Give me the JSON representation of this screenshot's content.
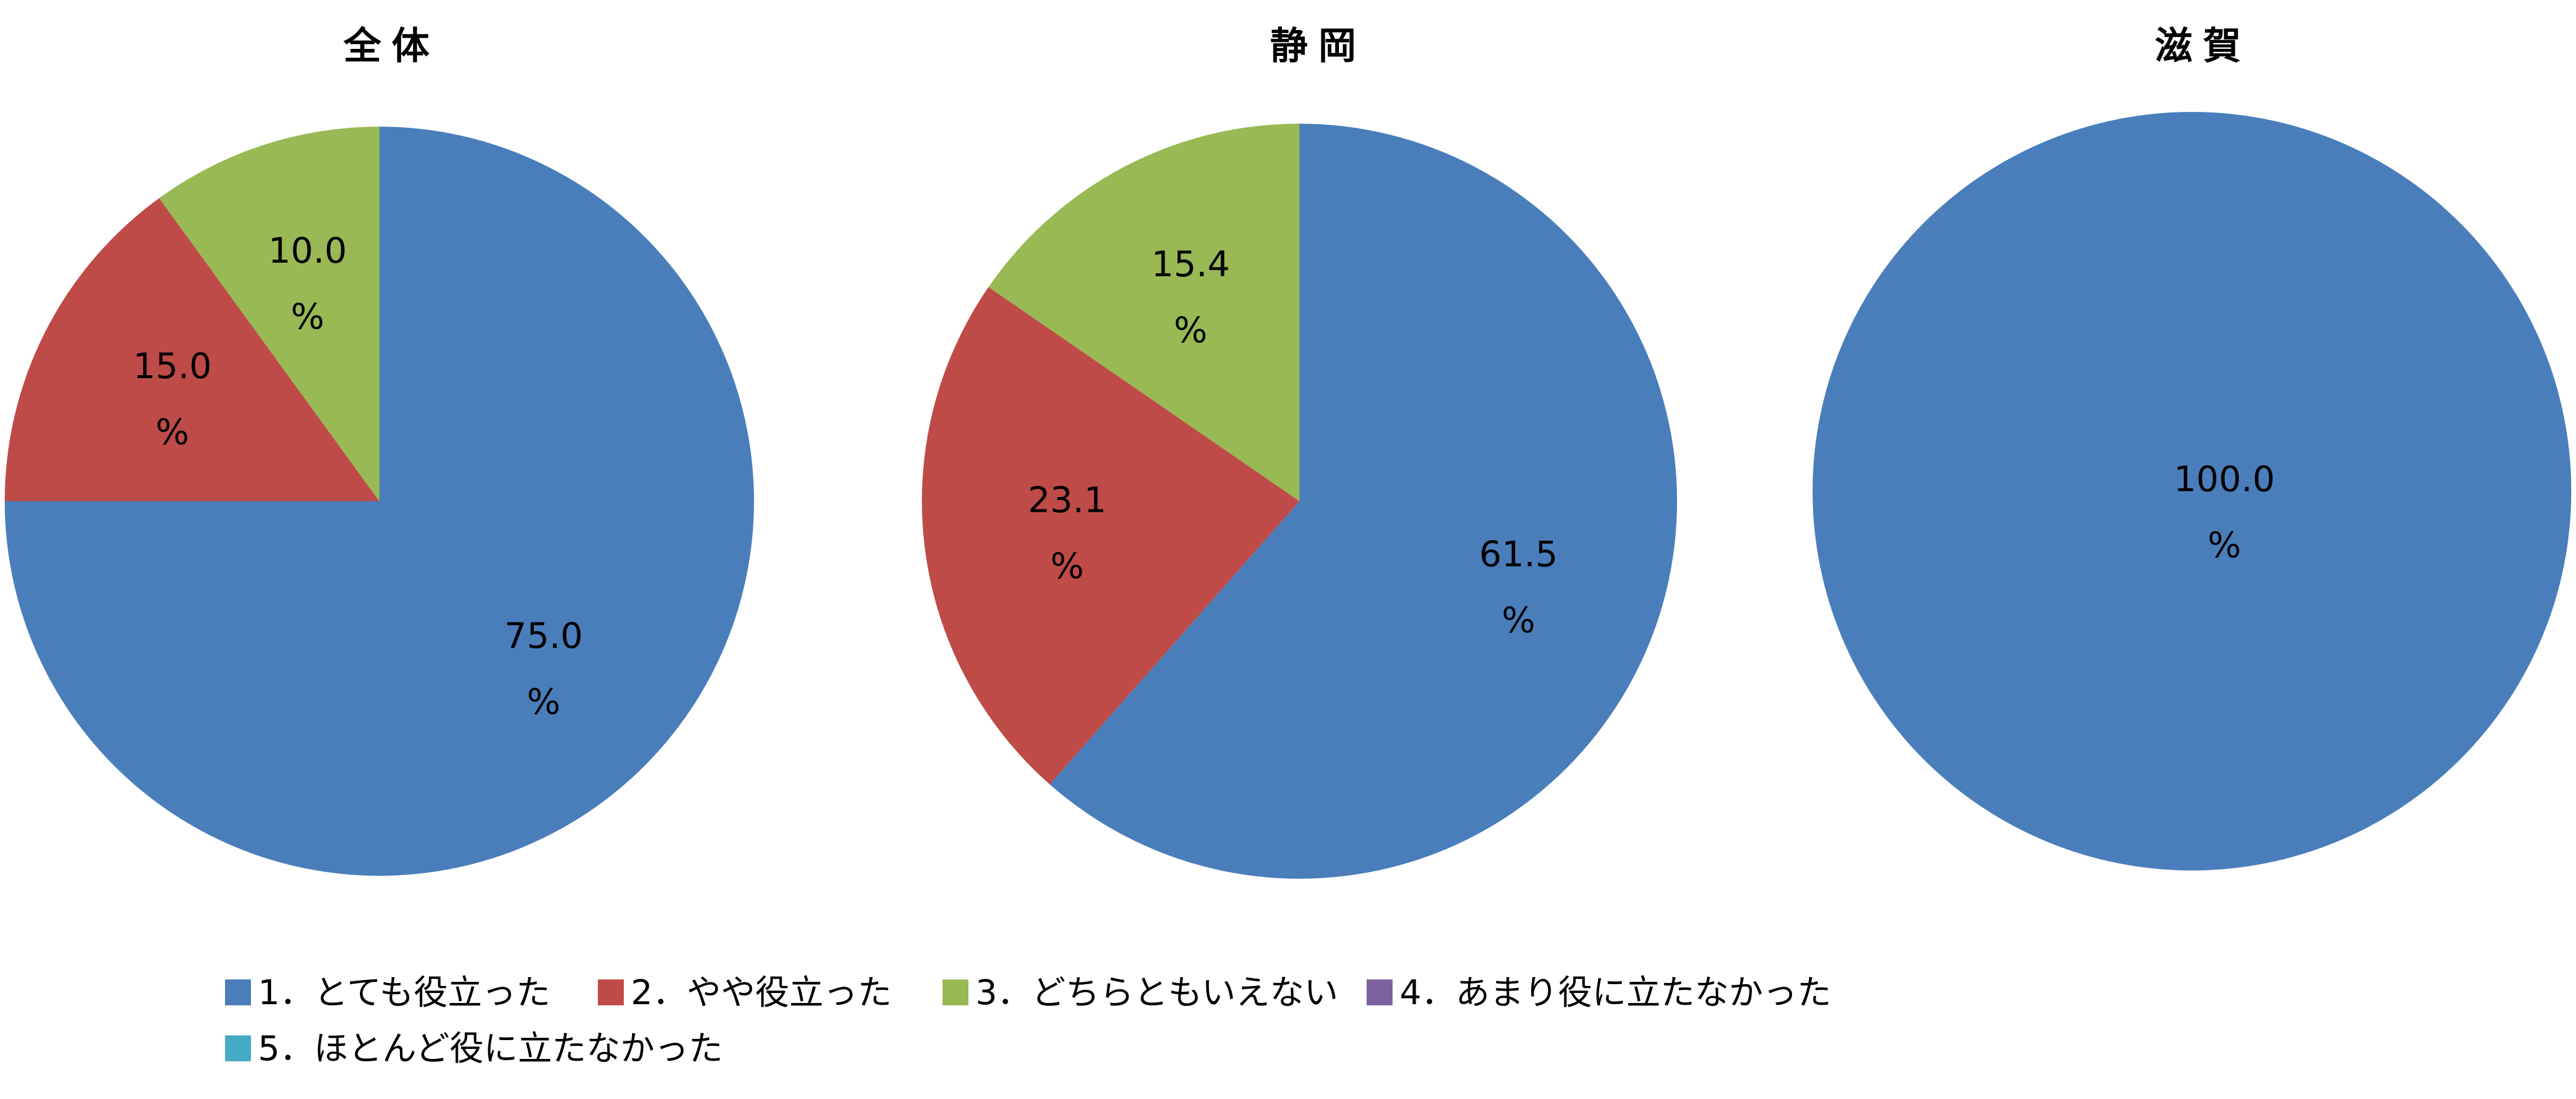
{
  "chart_data": [
    {
      "type": "pie",
      "title": "全体",
      "categories": [
        "1．とても役立った",
        "2．やや役立った",
        "3．どちらともいえない",
        "4．あまり役に立たなかった",
        "5．ほとんど役に立たなかった"
      ],
      "colors": [
        "#4a7ebb",
        "#be4b48",
        "#98b954",
        "#7d60a0",
        "#46aac5"
      ],
      "values": [
        75.0,
        15.0,
        10.0,
        0,
        0
      ],
      "value_labels": [
        "75.0%",
        "15.0%",
        "10.0%",
        null,
        null
      ]
    },
    {
      "type": "pie",
      "title": "静岡",
      "values": [
        61.5,
        23.1,
        15.4,
        0,
        0
      ],
      "value_labels": [
        "61.5%",
        "23.1%",
        "15.4%",
        null,
        null
      ]
    },
    {
      "type": "pie",
      "title": "滋賀",
      "values": [
        100.0,
        0,
        0,
        0,
        0
      ],
      "value_labels": [
        "100.0%",
        null,
        null,
        null,
        null
      ]
    }
  ]
}
